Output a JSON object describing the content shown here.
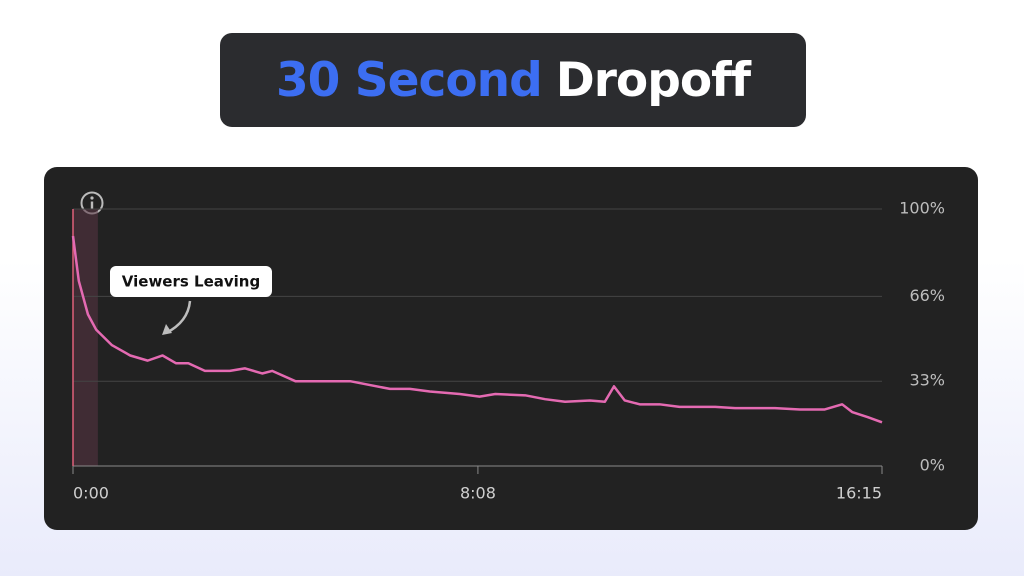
{
  "title": {
    "highlight": "30 Second",
    "rest": "Dropoff"
  },
  "chart_data": {
    "type": "line",
    "annotation": "Viewers Leaving",
    "highlight_range": [
      0,
      30
    ],
    "x": [
      0,
      7,
      18,
      28,
      47,
      69,
      90,
      108,
      124,
      139,
      159,
      189,
      207,
      228,
      240,
      268,
      292,
      334,
      358,
      382,
      406,
      430,
      466,
      490,
      509,
      545,
      569,
      593,
      623,
      641,
      652,
      665,
      683,
      707,
      731,
      774,
      798,
      846,
      876,
      906,
      927,
      939,
      958,
      975
    ],
    "series": [
      {
        "color": "#e46ab2",
        "values": [
          89.5,
          72,
          59,
          53,
          47,
          43,
          41,
          43,
          40,
          40,
          37,
          37,
          38,
          36,
          37,
          33,
          33,
          33,
          31.5,
          30,
          30,
          29,
          28,
          27,
          28,
          27.5,
          26,
          25,
          25.5,
          25,
          31,
          25.5,
          24,
          24,
          23,
          23,
          22.5,
          22.5,
          22,
          22,
          24,
          21,
          19,
          17
        ]
      }
    ],
    "xlim": [
      0,
      975
    ],
    "xticks": [
      {
        "value": 0,
        "label": "0:00"
      },
      {
        "value": 488,
        "label": "8:08"
      },
      {
        "value": 975,
        "label": "16:15"
      }
    ],
    "ylim": [
      0,
      100
    ],
    "yticks": [
      {
        "value": 0,
        "label": "0%"
      },
      {
        "value": 33,
        "label": "33%"
      },
      {
        "value": 66,
        "label": "66%"
      },
      {
        "value": 100,
        "label": "100%"
      }
    ],
    "grid": true
  }
}
